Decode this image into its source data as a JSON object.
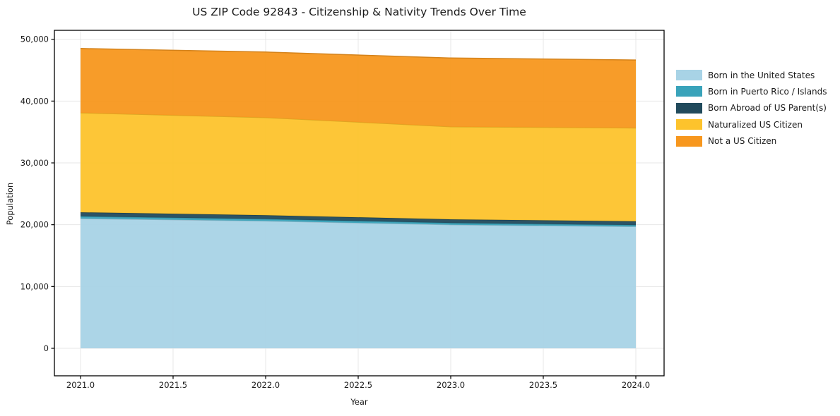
{
  "title": "US ZIP Code 92843 - Citizenship & Nativity Trends Over Time",
  "axes": {
    "xlabel": "Year",
    "ylabel": "Population",
    "x_tick_labels": [
      "2021.0",
      "2021.5",
      "2022.0",
      "2022.5",
      "2023.0",
      "2023.5",
      "2024.0"
    ],
    "x_tick_values": [
      2021.0,
      2021.5,
      2022.0,
      2022.5,
      2023.0,
      2023.5,
      2024.0
    ],
    "y_tick_labels": [
      "0",
      "10,000",
      "20,000",
      "30,000",
      "40,000",
      "50,000"
    ],
    "y_tick_values": [
      0,
      10000,
      20000,
      30000,
      40000,
      50000
    ]
  },
  "chart_data": {
    "type": "area",
    "stacked": true,
    "title": "US ZIP Code 92843 - Citizenship & Nativity Trends Over Time",
    "xlabel": "Year",
    "ylabel": "Population",
    "x": [
      2021,
      2022,
      2023,
      2024
    ],
    "series": [
      {
        "name": "Born in the United States",
        "color": "#A8D3E6",
        "values": [
          21000,
          20600,
          20000,
          19700
        ]
      },
      {
        "name": "Born in Puerto Rico / Islands",
        "color": "#39A3BA",
        "values": [
          350,
          320,
          280,
          250
        ]
      },
      {
        "name": "Born Abroad of US Parent(s)",
        "color": "#214A5C",
        "values": [
          650,
          620,
          580,
          600
        ]
      },
      {
        "name": "Naturalized US Citizen",
        "color": "#FDC32C",
        "values": [
          16100,
          15800,
          15000,
          15100
        ]
      },
      {
        "name": "Not a US Citizen",
        "color": "#F7971E",
        "values": [
          10400,
          10600,
          11100,
          11000
        ]
      }
    ],
    "totals_by_year": [
      48500,
      47940,
      46960,
      46650
    ],
    "ylim": [
      0,
      50000
    ],
    "xlim": [
      2020.86,
      2024.15
    ],
    "grid": true,
    "legend_position": "right-outside"
  },
  "style_colors": {
    "grid": "#e7e7e7",
    "spine": "#000000",
    "text": "#1a1a1a",
    "background": "#ffffff"
  }
}
